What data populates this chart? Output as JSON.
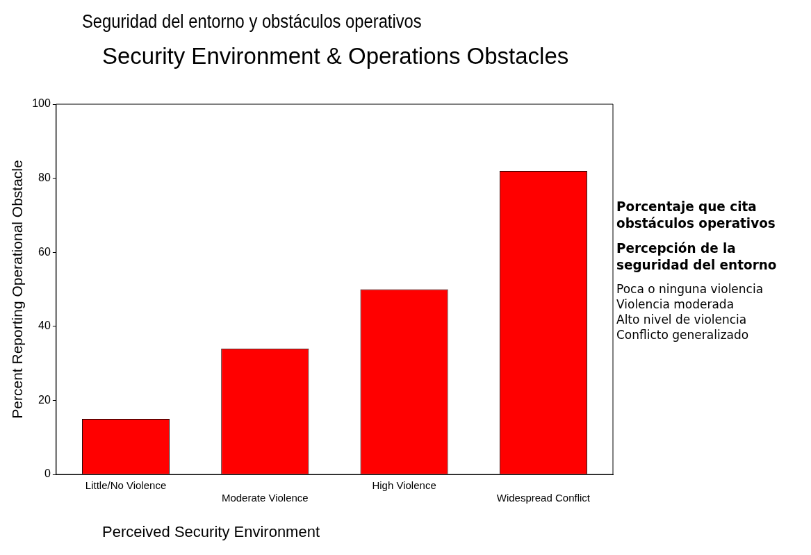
{
  "chart_data": {
    "type": "bar",
    "subtitle": "Seguridad del entorno y obstáculos operativos",
    "title": "Security Environment & Operations Obstacles",
    "xlabel": "Perceived Security Environment",
    "ylabel": "Percent Reporting Operational Obstacle",
    "categories": [
      "Little/No Violence",
      "Moderate Violence",
      "High Violence",
      "Widespread Conflict"
    ],
    "values": [
      15,
      34,
      50,
      82
    ],
    "color": "#ff0000",
    "ylim": [
      0,
      100
    ],
    "yticks": [
      0,
      20,
      40,
      60,
      80,
      100
    ],
    "grid": false,
    "legend": false,
    "annotations": [
      "Porcentaje que cita obstáculos operativos",
      "Percepción de la seguridad del entorno",
      "Poca o ninguna violencia\nViolencia moderada\nAlto nivel de violencia\nConflicto generalizado"
    ]
  }
}
